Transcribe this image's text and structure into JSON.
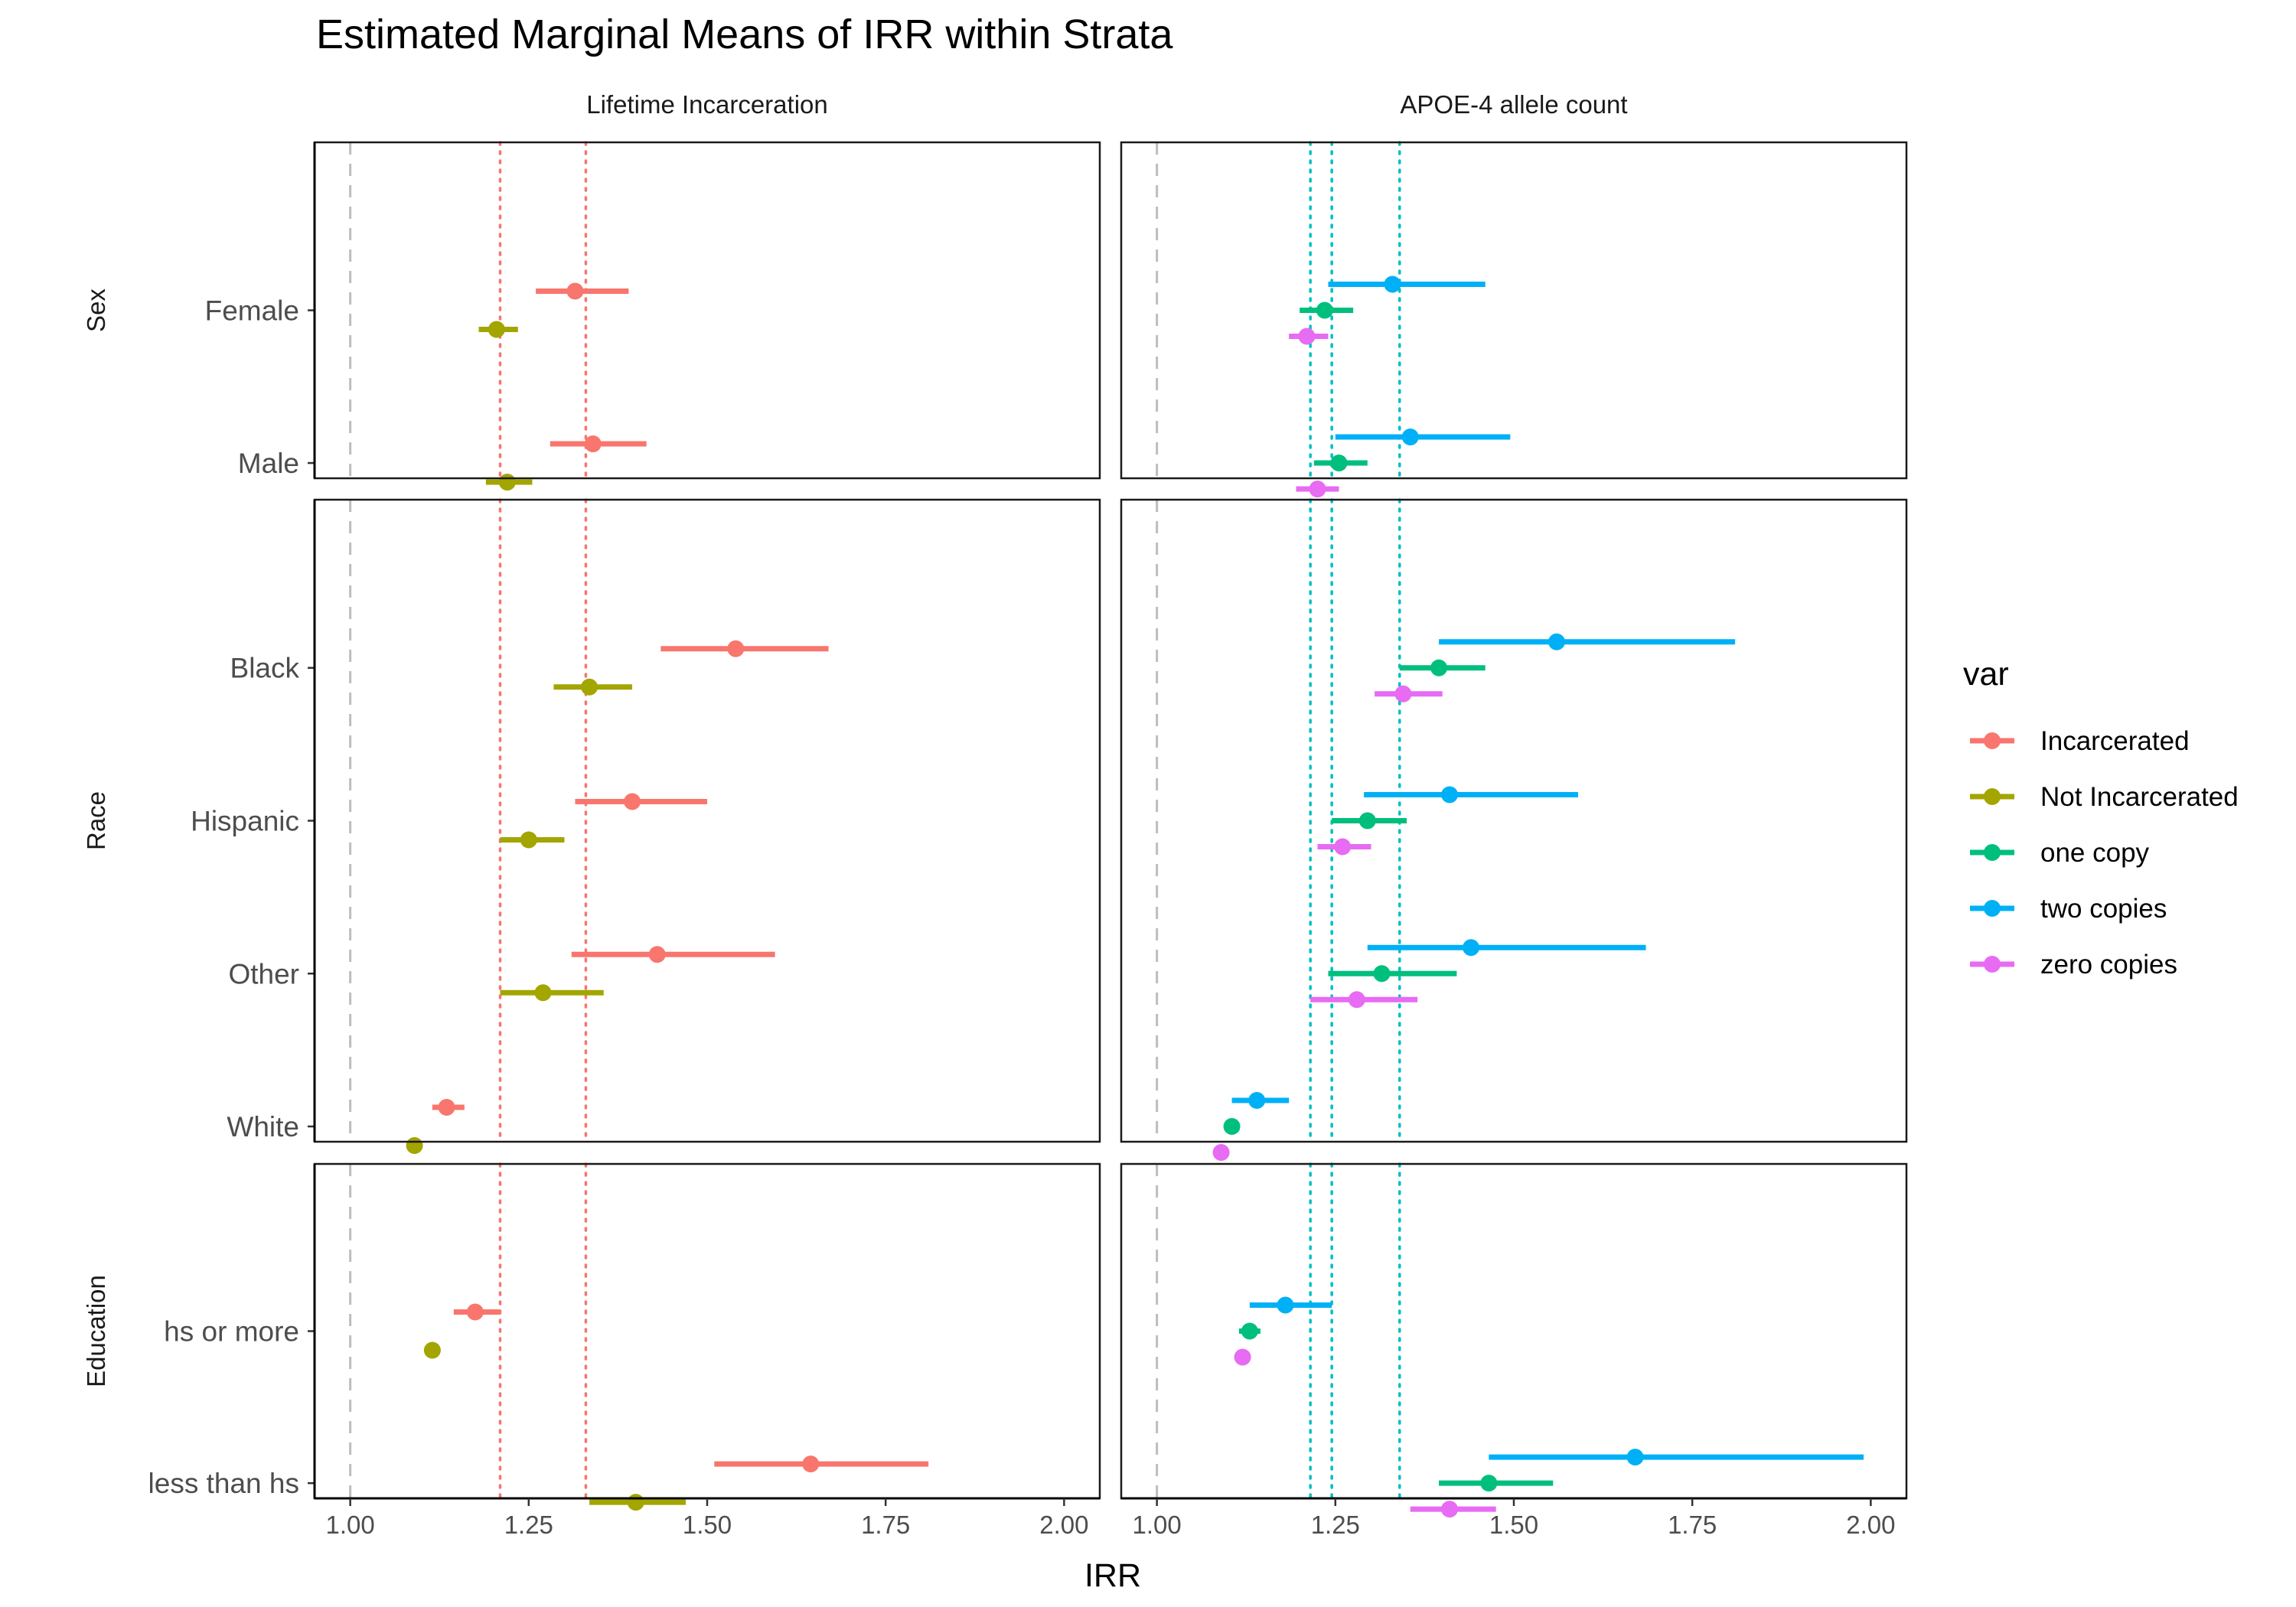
{
  "chart_data": {
    "type": "scatter",
    "subtype": "point-range forest plot, faceted grid",
    "title": "Estimated Marginal Means of IRR within Strata",
    "xlabel": "IRR",
    "ylabel": "",
    "xlim": [
      0.95,
      2.05
    ],
    "x_ticks": [
      "1.00",
      "1.25",
      "1.50",
      "1.75",
      "2.00"
    ],
    "x_tick_values": [
      1.0,
      1.25,
      1.5,
      1.75,
      2.0
    ],
    "grid": false,
    "reference_line": 1.0,
    "legend": {
      "title": "var",
      "position": "right",
      "entries": [
        {
          "name": "Incarcerated",
          "color": "#F8766D"
        },
        {
          "name": "Not Incarcerated",
          "color": "#A3A500"
        },
        {
          "name": "one copy",
          "color": "#00BF7D"
        },
        {
          "name": "two copies",
          "color": "#00B0F6"
        },
        {
          "name": "zero copies",
          "color": "#E76BF3"
        }
      ]
    },
    "columns": [
      {
        "label": "Lifetime Incarceration",
        "vlines": [
          {
            "x": 1.21,
            "color": "#F8766D"
          },
          {
            "x": 1.33,
            "color": "#F8766D"
          }
        ]
      },
      {
        "label": "APOE-4 allele count",
        "vlines": [
          {
            "x": 1.215,
            "color": "#00BFC4"
          },
          {
            "x": 1.245,
            "color": "#00BFC4"
          },
          {
            "x": 1.34,
            "color": "#00BFC4"
          }
        ]
      }
    ],
    "rows": [
      {
        "label": "Sex",
        "strata": [
          {
            "label": "Female",
            "panels": [
              [
                {
                  "series": "Incarcerated",
                  "est": 1.315,
                  "lo": 1.26,
                  "hi": 1.39
                },
                {
                  "series": "Not Incarcerated",
                  "est": 1.205,
                  "lo": 1.18,
                  "hi": 1.235
                }
              ],
              [
                {
                  "series": "two copies",
                  "est": 1.33,
                  "lo": 1.24,
                  "hi": 1.46
                },
                {
                  "series": "one copy",
                  "est": 1.235,
                  "lo": 1.2,
                  "hi": 1.275
                },
                {
                  "series": "zero copies",
                  "est": 1.21,
                  "lo": 1.185,
                  "hi": 1.24
                }
              ]
            ]
          },
          {
            "label": "Male",
            "panels": [
              [
                {
                  "series": "Incarcerated",
                  "est": 1.34,
                  "lo": 1.28,
                  "hi": 1.415
                },
                {
                  "series": "Not Incarcerated",
                  "est": 1.22,
                  "lo": 1.19,
                  "hi": 1.255
                }
              ],
              [
                {
                  "series": "two copies",
                  "est": 1.355,
                  "lo": 1.25,
                  "hi": 1.495
                },
                {
                  "series": "one copy",
                  "est": 1.255,
                  "lo": 1.22,
                  "hi": 1.295
                },
                {
                  "series": "zero copies",
                  "est": 1.225,
                  "lo": 1.195,
                  "hi": 1.255
                }
              ]
            ]
          }
        ]
      },
      {
        "label": "Race",
        "strata": [
          {
            "label": "Black",
            "panels": [
              [
                {
                  "series": "Incarcerated",
                  "est": 1.54,
                  "lo": 1.435,
                  "hi": 1.67
                },
                {
                  "series": "Not Incarcerated",
                  "est": 1.335,
                  "lo": 1.285,
                  "hi": 1.395
                }
              ],
              [
                {
                  "series": "two copies",
                  "est": 1.56,
                  "lo": 1.395,
                  "hi": 1.81
                },
                {
                  "series": "one copy",
                  "est": 1.395,
                  "lo": 1.34,
                  "hi": 1.46
                },
                {
                  "series": "zero copies",
                  "est": 1.345,
                  "lo": 1.305,
                  "hi": 1.4
                }
              ]
            ]
          },
          {
            "label": "Hispanic",
            "panels": [
              [
                {
                  "series": "Incarcerated",
                  "est": 1.395,
                  "lo": 1.315,
                  "hi": 1.5
                },
                {
                  "series": "Not Incarcerated",
                  "est": 1.25,
                  "lo": 1.21,
                  "hi": 1.3
                }
              ],
              [
                {
                  "series": "two copies",
                  "est": 1.41,
                  "lo": 1.29,
                  "hi": 1.59
                },
                {
                  "series": "one copy",
                  "est": 1.295,
                  "lo": 1.245,
                  "hi": 1.35
                },
                {
                  "series": "zero copies",
                  "est": 1.26,
                  "lo": 1.225,
                  "hi": 1.3
                }
              ]
            ]
          },
          {
            "label": "Other",
            "panels": [
              [
                {
                  "series": "Incarcerated",
                  "est": 1.43,
                  "lo": 1.31,
                  "hi": 1.595
                },
                {
                  "series": "Not Incarcerated",
                  "est": 1.27,
                  "lo": 1.21,
                  "hi": 1.355
                }
              ],
              [
                {
                  "series": "two copies",
                  "est": 1.44,
                  "lo": 1.295,
                  "hi": 1.685
                },
                {
                  "series": "one copy",
                  "est": 1.315,
                  "lo": 1.24,
                  "hi": 1.42
                },
                {
                  "series": "zero copies",
                  "est": 1.28,
                  "lo": 1.215,
                  "hi": 1.365
                }
              ]
            ]
          },
          {
            "label": "White",
            "panels": [
              [
                {
                  "series": "Incarcerated",
                  "est": 1.135,
                  "lo": 1.115,
                  "hi": 1.16
                },
                {
                  "series": "Not Incarcerated",
                  "est": 1.09,
                  "lo": 1.085,
                  "hi": 1.095
                }
              ],
              [
                {
                  "series": "two copies",
                  "est": 1.14,
                  "lo": 1.105,
                  "hi": 1.185
                },
                {
                  "series": "one copy",
                  "est": 1.105,
                  "lo": 1.095,
                  "hi": 1.115
                },
                {
                  "series": "zero copies",
                  "est": 1.09,
                  "lo": 1.085,
                  "hi": 1.095
                }
              ]
            ]
          }
        ]
      },
      {
        "label": "Education",
        "strata": [
          {
            "label": "hs or more",
            "panels": [
              [
                {
                  "series": "Incarcerated",
                  "est": 1.175,
                  "lo": 1.145,
                  "hi": 1.21
                },
                {
                  "series": "Not Incarcerated",
                  "est": 1.115,
                  "lo": 1.105,
                  "hi": 1.125
                }
              ],
              [
                {
                  "series": "two copies",
                  "est": 1.18,
                  "lo": 1.13,
                  "hi": 1.245
                },
                {
                  "series": "one copy",
                  "est": 1.13,
                  "lo": 1.115,
                  "hi": 1.145
                },
                {
                  "series": "zero copies",
                  "est": 1.12,
                  "lo": 1.11,
                  "hi": 1.13
                }
              ]
            ]
          },
          {
            "label": "less than hs",
            "panels": [
              [
                {
                  "series": "Incarcerated",
                  "est": 1.645,
                  "lo": 1.51,
                  "hi": 1.81
                },
                {
                  "series": "Not Incarcerated",
                  "est": 1.4,
                  "lo": 1.335,
                  "hi": 1.47
                }
              ],
              [
                {
                  "series": "two copies",
                  "est": 1.67,
                  "lo": 1.465,
                  "hi": 1.99
                },
                {
                  "series": "one copy",
                  "est": 1.465,
                  "lo": 1.395,
                  "hi": 1.555
                },
                {
                  "series": "zero copies",
                  "est": 1.41,
                  "lo": 1.355,
                  "hi": 1.475
                }
              ]
            ]
          }
        ]
      }
    ]
  }
}
